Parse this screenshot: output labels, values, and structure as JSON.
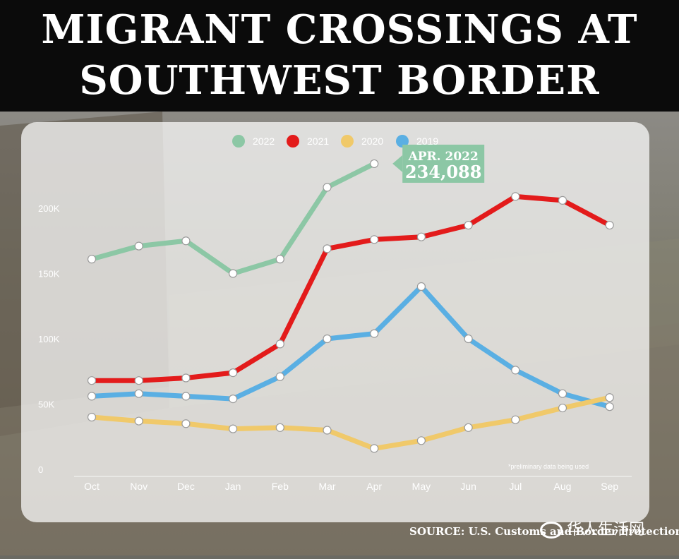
{
  "header": {
    "title_line1": "MIGRANT CROSSINGS AT",
    "title_line2": "SOUTHWEST BORDER"
  },
  "source": "SOURCE: U.S. Customs and Border Protection",
  "watermark": "华人生活网",
  "chart_data": {
    "type": "line",
    "title": "MIGRANT CROSSINGS AT SOUTHWEST BORDER",
    "categories": [
      "Oct",
      "Nov",
      "Dec",
      "Jan",
      "Feb",
      "Mar",
      "Apr",
      "May",
      "Jun",
      "Jul",
      "Aug",
      "Sep"
    ],
    "y_ticks": [
      "0",
      "50K",
      "100K",
      "150K",
      "200K"
    ],
    "ylim": [
      0,
      234088
    ],
    "grid": false,
    "legend_position": "top",
    "note": "*preliminary data being used",
    "callout": {
      "line1": "APR. 2022",
      "line2": "234,088",
      "series": "2022",
      "category": "Apr"
    },
    "series": [
      {
        "name": "2022",
        "color": "#8cc7a5",
        "values": [
          161000,
          171000,
          175000,
          150000,
          161000,
          216000,
          234088,
          null,
          null,
          null,
          null,
          null
        ]
      },
      {
        "name": "2021",
        "color": "#e31b1b",
        "values": [
          68000,
          68000,
          70000,
          74000,
          96000,
          169000,
          176000,
          178000,
          187000,
          209000,
          206000,
          187000
        ]
      },
      {
        "name": "2020",
        "color": "#f0c96a",
        "values": [
          40000,
          37000,
          35000,
          31000,
          32000,
          30000,
          16000,
          22000,
          32000,
          38000,
          47000,
          55000
        ]
      },
      {
        "name": "2019",
        "color": "#5aafe3",
        "values": [
          56000,
          58000,
          56000,
          54000,
          71000,
          100000,
          104000,
          140000,
          100000,
          76000,
          58000,
          48000
        ]
      }
    ]
  }
}
